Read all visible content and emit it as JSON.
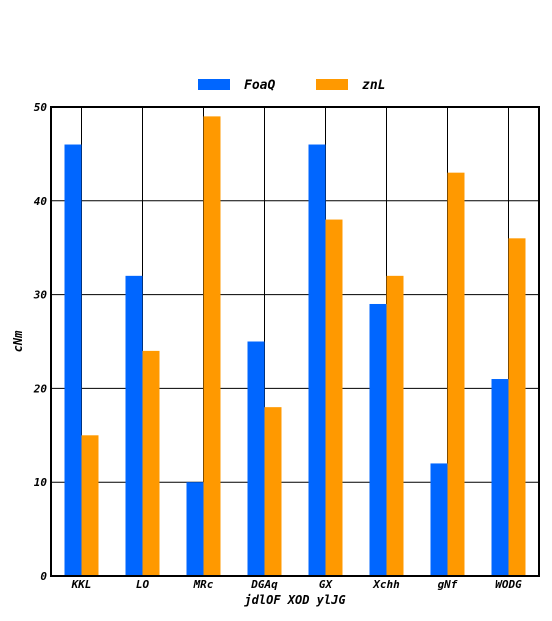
{
  "chart_data": {
    "type": "bar",
    "title": "",
    "xlabel": "jdlOF XOD ylJG",
    "ylabel": "cNm",
    "ylim": [
      0,
      50
    ],
    "yticks": [
      0,
      10,
      20,
      30,
      40,
      50
    ],
    "grid": true,
    "legend_position": "top-center",
    "categories": [
      "KKL",
      "LO",
      "MRc",
      "DGAq",
      "GX",
      "Xchh",
      "gNf",
      "WODG"
    ],
    "series": [
      {
        "name": "FoaQ",
        "color": "#0066ff",
        "values": [
          46,
          32,
          10,
          25,
          46,
          29,
          12,
          21
        ]
      },
      {
        "name": "znL",
        "color": "#ff9900",
        "values": [
          15,
          24,
          49,
          18,
          38,
          32,
          43,
          36
        ]
      }
    ]
  }
}
